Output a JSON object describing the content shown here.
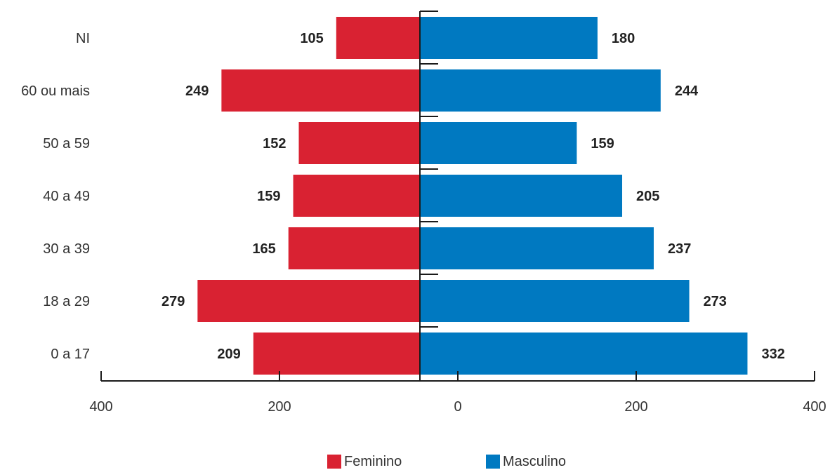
{
  "chart_data": {
    "type": "bar",
    "orientation": "horizontal-pyramid",
    "categories": [
      "NI",
      "60 ou mais",
      "50 a 59",
      "40 a 49",
      "30 a 39",
      "18 a 29",
      "0 a 17"
    ],
    "series": [
      {
        "name": "Feminino",
        "color": "#d92232",
        "values": [
          105,
          249,
          152,
          159,
          165,
          279,
          209
        ]
      },
      {
        "name": "Masculino",
        "color": "#0079c1",
        "values": [
          180,
          244,
          159,
          205,
          237,
          273,
          332
        ]
      }
    ],
    "x_ticks": [
      "400",
      "200",
      "0",
      "200",
      "400"
    ],
    "xlim": [
      -400,
      400
    ],
    "legend_position": "bottom"
  }
}
